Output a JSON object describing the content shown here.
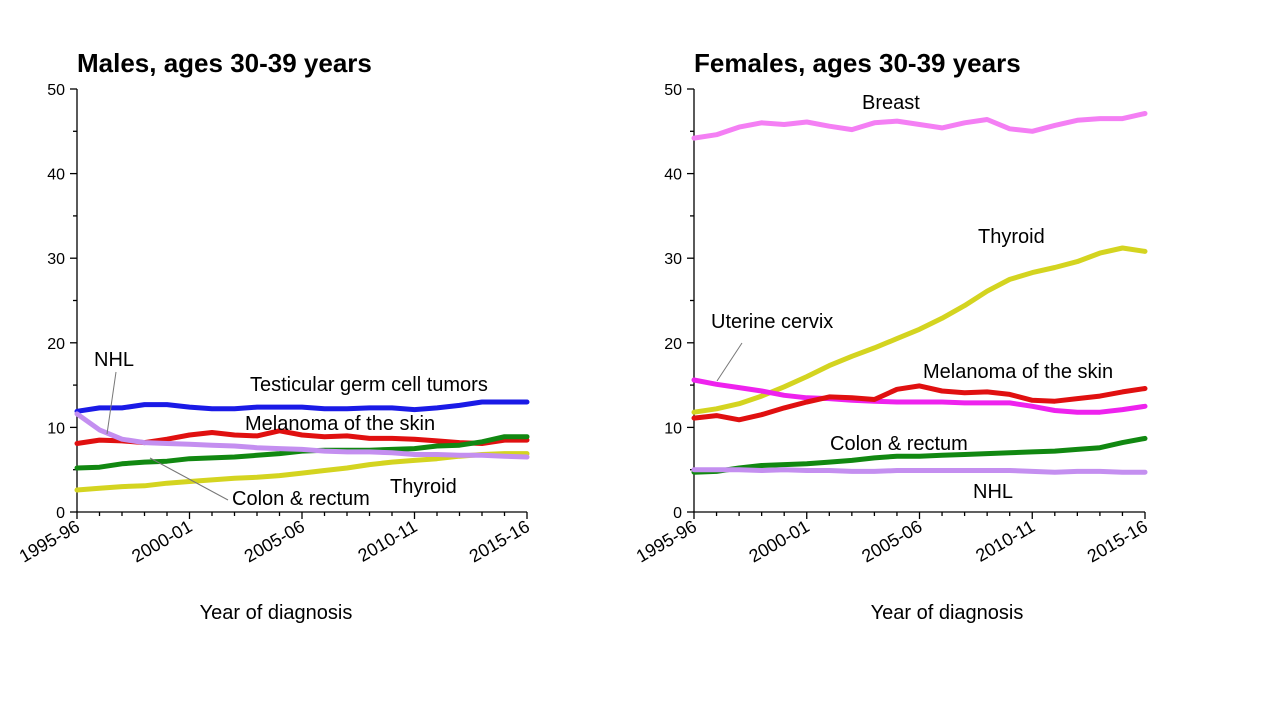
{
  "chart_data": [
    {
      "type": "line",
      "title": "Males, ages 30-39 years",
      "xlabel": "Year of diagnosis",
      "ylabel": "",
      "ylim": [
        0,
        50
      ],
      "yticks": [
        0,
        10,
        20,
        30,
        40,
        50
      ],
      "x": [
        "1995-96",
        "1996-97",
        "1997-98",
        "1998-99",
        "1999-00",
        "2000-01",
        "2001-02",
        "2002-03",
        "2003-04",
        "2004-05",
        "2005-06",
        "2006-07",
        "2007-08",
        "2008-09",
        "2009-10",
        "2010-11",
        "2011-12",
        "2012-13",
        "2013-14",
        "2014-15",
        "2015-16"
      ],
      "x_tick_labels": [
        "1995-96",
        "2000-01",
        "2005-06",
        "2010-11",
        "2015-16"
      ],
      "series": [
        {
          "name": "Testicular germ cell tumors",
          "color": "#1a1ae6",
          "values": [
            11.9,
            12.3,
            12.3,
            12.7,
            12.7,
            12.4,
            12.2,
            12.2,
            12.4,
            12.4,
            12.4,
            12.2,
            12.2,
            12.3,
            12.3,
            12.1,
            12.3,
            12.6,
            13.0,
            13.0,
            13.0
          ]
        },
        {
          "name": "Melanoma of the skin",
          "color": "#e01010",
          "values": [
            8.1,
            8.5,
            8.4,
            8.2,
            8.6,
            9.1,
            9.4,
            9.1,
            9.0,
            9.6,
            9.1,
            8.9,
            9.0,
            8.7,
            8.7,
            8.6,
            8.4,
            8.2,
            8.1,
            8.5,
            8.5
          ]
        },
        {
          "name": "Colon & rectum",
          "color": "#118811",
          "values": [
            5.2,
            5.3,
            5.7,
            5.9,
            6.0,
            6.3,
            6.4,
            6.5,
            6.7,
            6.9,
            7.2,
            7.3,
            7.3,
            7.3,
            7.4,
            7.5,
            7.8,
            7.9,
            8.3,
            8.9,
            8.9
          ]
        },
        {
          "name": "Thyroid",
          "color": "#d4d420",
          "values": [
            2.6,
            2.8,
            3.0,
            3.1,
            3.4,
            3.6,
            3.8,
            4.0,
            4.1,
            4.3,
            4.6,
            4.9,
            5.2,
            5.6,
            5.9,
            6.1,
            6.3,
            6.6,
            6.8,
            6.9,
            6.9
          ]
        },
        {
          "name": "NHL",
          "color": "#c48ff0",
          "values": [
            11.6,
            9.7,
            8.6,
            8.2,
            8.1,
            8.0,
            7.9,
            7.8,
            7.6,
            7.5,
            7.4,
            7.2,
            7.1,
            7.1,
            7.0,
            6.8,
            6.8,
            6.7,
            6.7,
            6.6,
            6.5
          ]
        }
      ],
      "annotations": [
        {
          "text": "NHL"
        },
        {
          "text": "Testicular germ cell tumors"
        },
        {
          "text": "Melanoma of the skin"
        },
        {
          "text": "Colon & rectum"
        },
        {
          "text": "Thyroid"
        }
      ]
    },
    {
      "type": "line",
      "title": "Females, ages 30-39 years",
      "xlabel": "Year of diagnosis",
      "ylabel": "",
      "ylim": [
        0,
        50
      ],
      "yticks": [
        0,
        10,
        20,
        30,
        40,
        50
      ],
      "x": [
        "1995-96",
        "1996-97",
        "1997-98",
        "1998-99",
        "1999-00",
        "2000-01",
        "2001-02",
        "2002-03",
        "2003-04",
        "2004-05",
        "2005-06",
        "2006-07",
        "2007-08",
        "2008-09",
        "2009-10",
        "2010-11",
        "2011-12",
        "2012-13",
        "2013-14",
        "2014-15",
        "2015-16"
      ],
      "x_tick_labels": [
        "1995-96",
        "2000-01",
        "2005-06",
        "2010-11",
        "2015-16"
      ],
      "series": [
        {
          "name": "Breast",
          "color": "#f47ff4",
          "values": [
            44.2,
            44.6,
            45.5,
            46.0,
            45.8,
            46.1,
            45.6,
            45.2,
            46.0,
            46.2,
            45.8,
            45.4,
            46.0,
            46.4,
            45.3,
            45.0,
            45.7,
            46.3,
            46.5,
            46.5,
            47.1
          ]
        },
        {
          "name": "Thyroid",
          "color": "#d4d420",
          "values": [
            11.8,
            12.2,
            12.8,
            13.7,
            14.8,
            16.0,
            17.3,
            18.4,
            19.4,
            20.5,
            21.6,
            22.9,
            24.4,
            26.1,
            27.5,
            28.3,
            28.9,
            29.6,
            30.6,
            31.2,
            30.8
          ]
        },
        {
          "name": "Uterine cervix",
          "color": "#ee22ee",
          "values": [
            15.6,
            15.1,
            14.7,
            14.3,
            13.8,
            13.5,
            13.4,
            13.2,
            13.1,
            13.0,
            13.0,
            13.0,
            12.9,
            12.9,
            12.9,
            12.5,
            12.0,
            11.8,
            11.8,
            12.1,
            12.5
          ]
        },
        {
          "name": "Melanoma of the skin",
          "color": "#e01010",
          "values": [
            11.1,
            11.4,
            10.9,
            11.5,
            12.3,
            13.0,
            13.6,
            13.5,
            13.3,
            14.5,
            14.9,
            14.3,
            14.1,
            14.2,
            13.9,
            13.2,
            13.1,
            13.4,
            13.7,
            14.2,
            14.6
          ]
        },
        {
          "name": "Colon & rectum",
          "color": "#118811",
          "values": [
            4.7,
            4.8,
            5.2,
            5.5,
            5.6,
            5.7,
            5.9,
            6.1,
            6.4,
            6.6,
            6.6,
            6.7,
            6.8,
            6.9,
            7.0,
            7.1,
            7.2,
            7.4,
            7.6,
            8.2,
            8.7
          ]
        },
        {
          "name": "NHL",
          "color": "#c48ff0",
          "values": [
            5.0,
            5.0,
            5.0,
            4.9,
            5.0,
            4.9,
            4.9,
            4.8,
            4.8,
            4.9,
            4.9,
            4.9,
            4.9,
            4.9,
            4.9,
            4.8,
            4.7,
            4.8,
            4.8,
            4.7,
            4.7
          ]
        }
      ],
      "annotations": [
        {
          "text": "Breast"
        },
        {
          "text": "Thyroid"
        },
        {
          "text": "Uterine cervix"
        },
        {
          "text": "Melanoma of the skin"
        },
        {
          "text": "Colon & rectum"
        },
        {
          "text": "NHL"
        }
      ]
    }
  ]
}
